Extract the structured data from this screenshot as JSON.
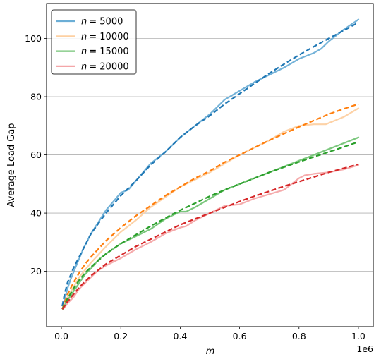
{
  "chart_data": {
    "type": "line",
    "ylabel": "Average Load Gap",
    "xlabel_var": "m",
    "x_offset_text": "1e6",
    "xlim": [
      -0.05,
      1.05
    ],
    "ylim": [
      1,
      112
    ],
    "x_ticks": [
      0.0,
      0.2,
      0.4,
      0.6,
      0.8,
      1.0
    ],
    "x_tick_labels": [
      "0.0",
      "0.2",
      "0.4",
      "0.6",
      "0.8",
      "1.0"
    ],
    "y_ticks": [
      20,
      40,
      60,
      80,
      100
    ],
    "y_tick_labels": [
      "20",
      "40",
      "60",
      "80",
      "100"
    ],
    "grid": "y-major",
    "legend_position": "upper left",
    "series": [
      {
        "name": "n = 5000",
        "legend_prefix": "n",
        "legend_value": "= 5000",
        "color": "#6baed6",
        "fit_color": "#1f77b4",
        "x": [
          0.005,
          0.01,
          0.02,
          0.03,
          0.05,
          0.075,
          0.1,
          0.125,
          0.15,
          0.175,
          0.2,
          0.225,
          0.25,
          0.3,
          0.35,
          0.4,
          0.45,
          0.5,
          0.55,
          0.6,
          0.65,
          0.7,
          0.75,
          0.8,
          0.85,
          0.875,
          0.9,
          0.95,
          1.0
        ],
        "y": [
          7,
          10,
          14,
          17,
          22,
          28,
          33,
          37,
          41,
          44,
          47,
          48,
          51,
          57,
          61,
          66,
          70,
          74,
          79,
          82,
          85,
          87.5,
          90,
          93,
          95,
          96.5,
          99,
          103,
          106.5
        ],
        "fit_x": [
          0.003,
          0.01,
          0.02,
          0.04,
          0.06,
          0.08,
          0.1,
          0.15,
          0.2,
          0.25,
          0.3,
          0.35,
          0.4,
          0.45,
          0.5,
          0.55,
          0.6,
          0.65,
          0.7,
          0.75,
          0.8,
          0.85,
          0.9,
          0.95,
          1.0
        ],
        "fit_y": [
          8,
          12,
          16,
          21,
          25,
          29,
          33,
          40,
          46,
          51,
          56.5,
          61,
          66,
          70,
          73.5,
          77.5,
          81,
          84.5,
          88,
          91.2,
          94.3,
          97.2,
          100,
          102.7,
          105.5
        ]
      },
      {
        "name": "n = 10000",
        "legend_prefix": "n",
        "legend_value": "= 10000",
        "color": "#fdd0a2",
        "fit_color": "#ff7f0e",
        "x": [
          0.005,
          0.01,
          0.02,
          0.04,
          0.06,
          0.08,
          0.1,
          0.15,
          0.2,
          0.25,
          0.3,
          0.35,
          0.4,
          0.45,
          0.5,
          0.55,
          0.6,
          0.65,
          0.7,
          0.75,
          0.8,
          0.85,
          0.89,
          0.95,
          1.0
        ],
        "y": [
          7,
          9,
          11,
          14.5,
          18,
          20.5,
          23,
          28.5,
          33.5,
          37.5,
          42,
          45.5,
          49,
          51.5,
          54,
          57,
          60,
          62.5,
          65,
          68,
          70,
          70.5,
          70.5,
          73,
          76
        ],
        "fit_x": [
          0.003,
          0.01,
          0.02,
          0.04,
          0.06,
          0.08,
          0.1,
          0.15,
          0.2,
          0.25,
          0.3,
          0.35,
          0.4,
          0.45,
          0.5,
          0.55,
          0.6,
          0.65,
          0.7,
          0.75,
          0.8,
          0.85,
          0.9,
          0.95,
          1.0
        ],
        "fit_y": [
          7,
          9,
          12,
          16,
          19.5,
          22.5,
          25,
          30.5,
          35,
          39,
          42.5,
          46,
          49,
          52,
          54.5,
          57.5,
          60,
          62.5,
          65,
          67.3,
          69.6,
          71.8,
          74,
          75.8,
          77.5
        ]
      },
      {
        "name": "n = 15000",
        "legend_prefix": "n",
        "legend_value": "= 15000",
        "color": "#74c476",
        "fit_color": "#2ca02c",
        "x": [
          0.005,
          0.01,
          0.02,
          0.04,
          0.06,
          0.08,
          0.1,
          0.125,
          0.15,
          0.2,
          0.25,
          0.3,
          0.35,
          0.4,
          0.42,
          0.45,
          0.5,
          0.55,
          0.6,
          0.65,
          0.7,
          0.75,
          0.8,
          0.85,
          0.9,
          0.95,
          1.0
        ],
        "y": [
          7,
          8,
          10,
          13,
          16,
          19,
          21,
          24,
          26,
          29.5,
          32,
          34.5,
          38,
          40.5,
          40.5,
          42,
          45,
          48,
          50,
          52,
          54,
          56,
          58,
          60,
          62,
          64,
          66
        ],
        "fit_x": [
          0.003,
          0.01,
          0.02,
          0.04,
          0.06,
          0.08,
          0.1,
          0.15,
          0.2,
          0.25,
          0.3,
          0.35,
          0.4,
          0.45,
          0.5,
          0.55,
          0.6,
          0.65,
          0.7,
          0.75,
          0.8,
          0.85,
          0.9,
          0.95,
          1.0
        ],
        "fit_y": [
          7,
          8.5,
          10.5,
          14,
          17,
          19.5,
          21.5,
          26,
          29.5,
          32.5,
          35.5,
          38.3,
          41,
          43.4,
          45.8,
          48,
          50,
          52,
          54,
          55.8,
          57.6,
          59.3,
          61,
          62.7,
          64.5
        ]
      },
      {
        "name": "n = 20000",
        "legend_prefix": "n",
        "legend_value": "= 20000",
        "color": "#f4a6a8",
        "fit_color": "#d62728",
        "x": [
          0.005,
          0.01,
          0.02,
          0.04,
          0.06,
          0.08,
          0.1,
          0.12,
          0.15,
          0.2,
          0.25,
          0.3,
          0.35,
          0.4,
          0.42,
          0.45,
          0.5,
          0.55,
          0.6,
          0.65,
          0.7,
          0.75,
          0.8,
          0.82,
          0.85,
          0.9,
          0.95,
          1.0
        ],
        "y": [
          8,
          7.5,
          9,
          11,
          14,
          16,
          18,
          20,
          22,
          24.5,
          27.5,
          30,
          33,
          35,
          35.5,
          37.5,
          40,
          42.5,
          43,
          45,
          46.5,
          48,
          52,
          53,
          53.5,
          54,
          55,
          56.5
        ],
        "fit_x": [
          0.003,
          0.01,
          0.02,
          0.04,
          0.06,
          0.08,
          0.1,
          0.15,
          0.2,
          0.25,
          0.3,
          0.35,
          0.4,
          0.45,
          0.5,
          0.55,
          0.6,
          0.65,
          0.7,
          0.75,
          0.8,
          0.85,
          0.9,
          0.95,
          1.0
        ],
        "fit_y": [
          7,
          8,
          9.5,
          12,
          14.5,
          16.5,
          18.5,
          22.5,
          25.5,
          28.5,
          31,
          33.5,
          36,
          38,
          40,
          42,
          44,
          45.8,
          47.5,
          49.2,
          50.8,
          52.4,
          54,
          55.4,
          56.8
        ]
      }
    ]
  }
}
